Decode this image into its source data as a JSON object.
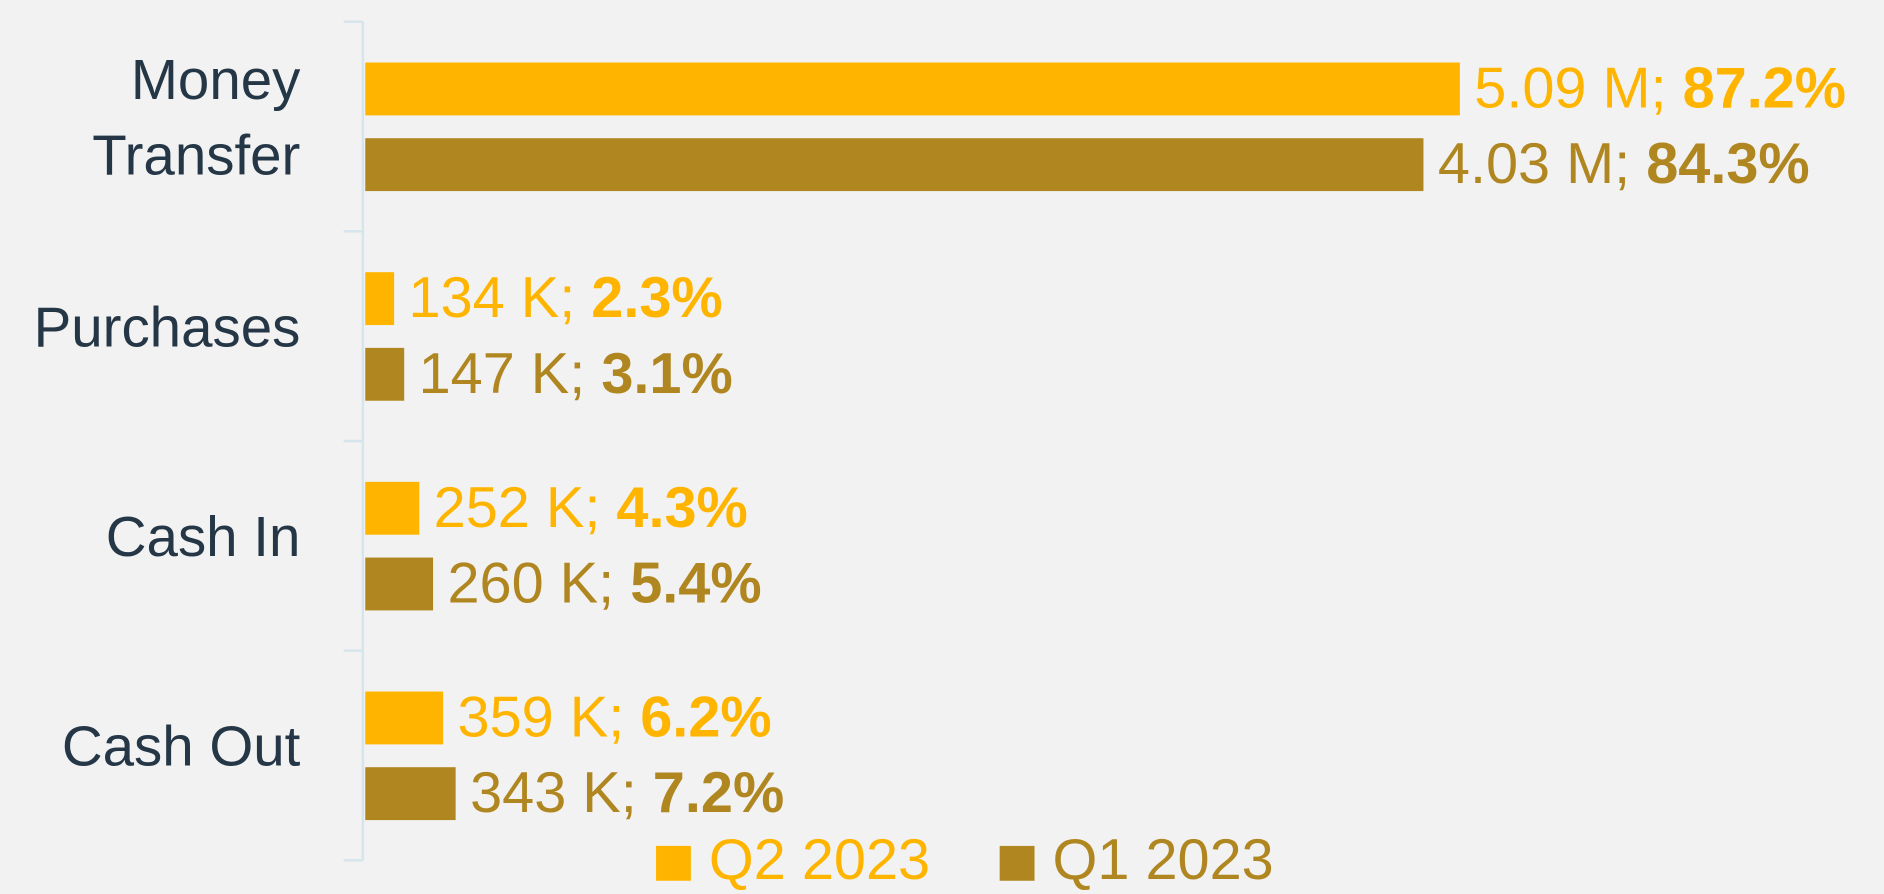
{
  "chart_data": {
    "type": "bar",
    "orientation": "horizontal",
    "categories": [
      "Money Transfer",
      "Purchases",
      "Cash In",
      "Cash Out"
    ],
    "category_lines": [
      [
        "Money",
        "Transfer"
      ],
      [
        "Purchases"
      ],
      [
        "Cash In"
      ],
      [
        "Cash Out"
      ]
    ],
    "series": [
      {
        "name": "Q2 2023",
        "color": "#ffb500",
        "values": [
          5090000,
          134000,
          252000,
          359000
        ],
        "value_labels": [
          "5.09 M",
          "134 K",
          "252 K",
          "359 K"
        ],
        "shares": [
          87.2,
          2.3,
          4.3,
          6.2
        ],
        "share_labels": [
          "87.2%",
          "2.3%",
          "4.3%",
          "6.2%"
        ]
      },
      {
        "name": "Q1 2023",
        "color": "#b08620",
        "values": [
          4030000,
          147000,
          260000,
          343000
        ],
        "value_labels": [
          "4.03 M",
          "147 K",
          "260 K",
          "343 K"
        ],
        "shares": [
          84.3,
          3.1,
          5.4,
          7.2
        ],
        "share_labels": [
          "84.3%",
          "3.1%",
          "5.4%",
          "7.2%"
        ]
      }
    ],
    "legend": "bottom"
  }
}
